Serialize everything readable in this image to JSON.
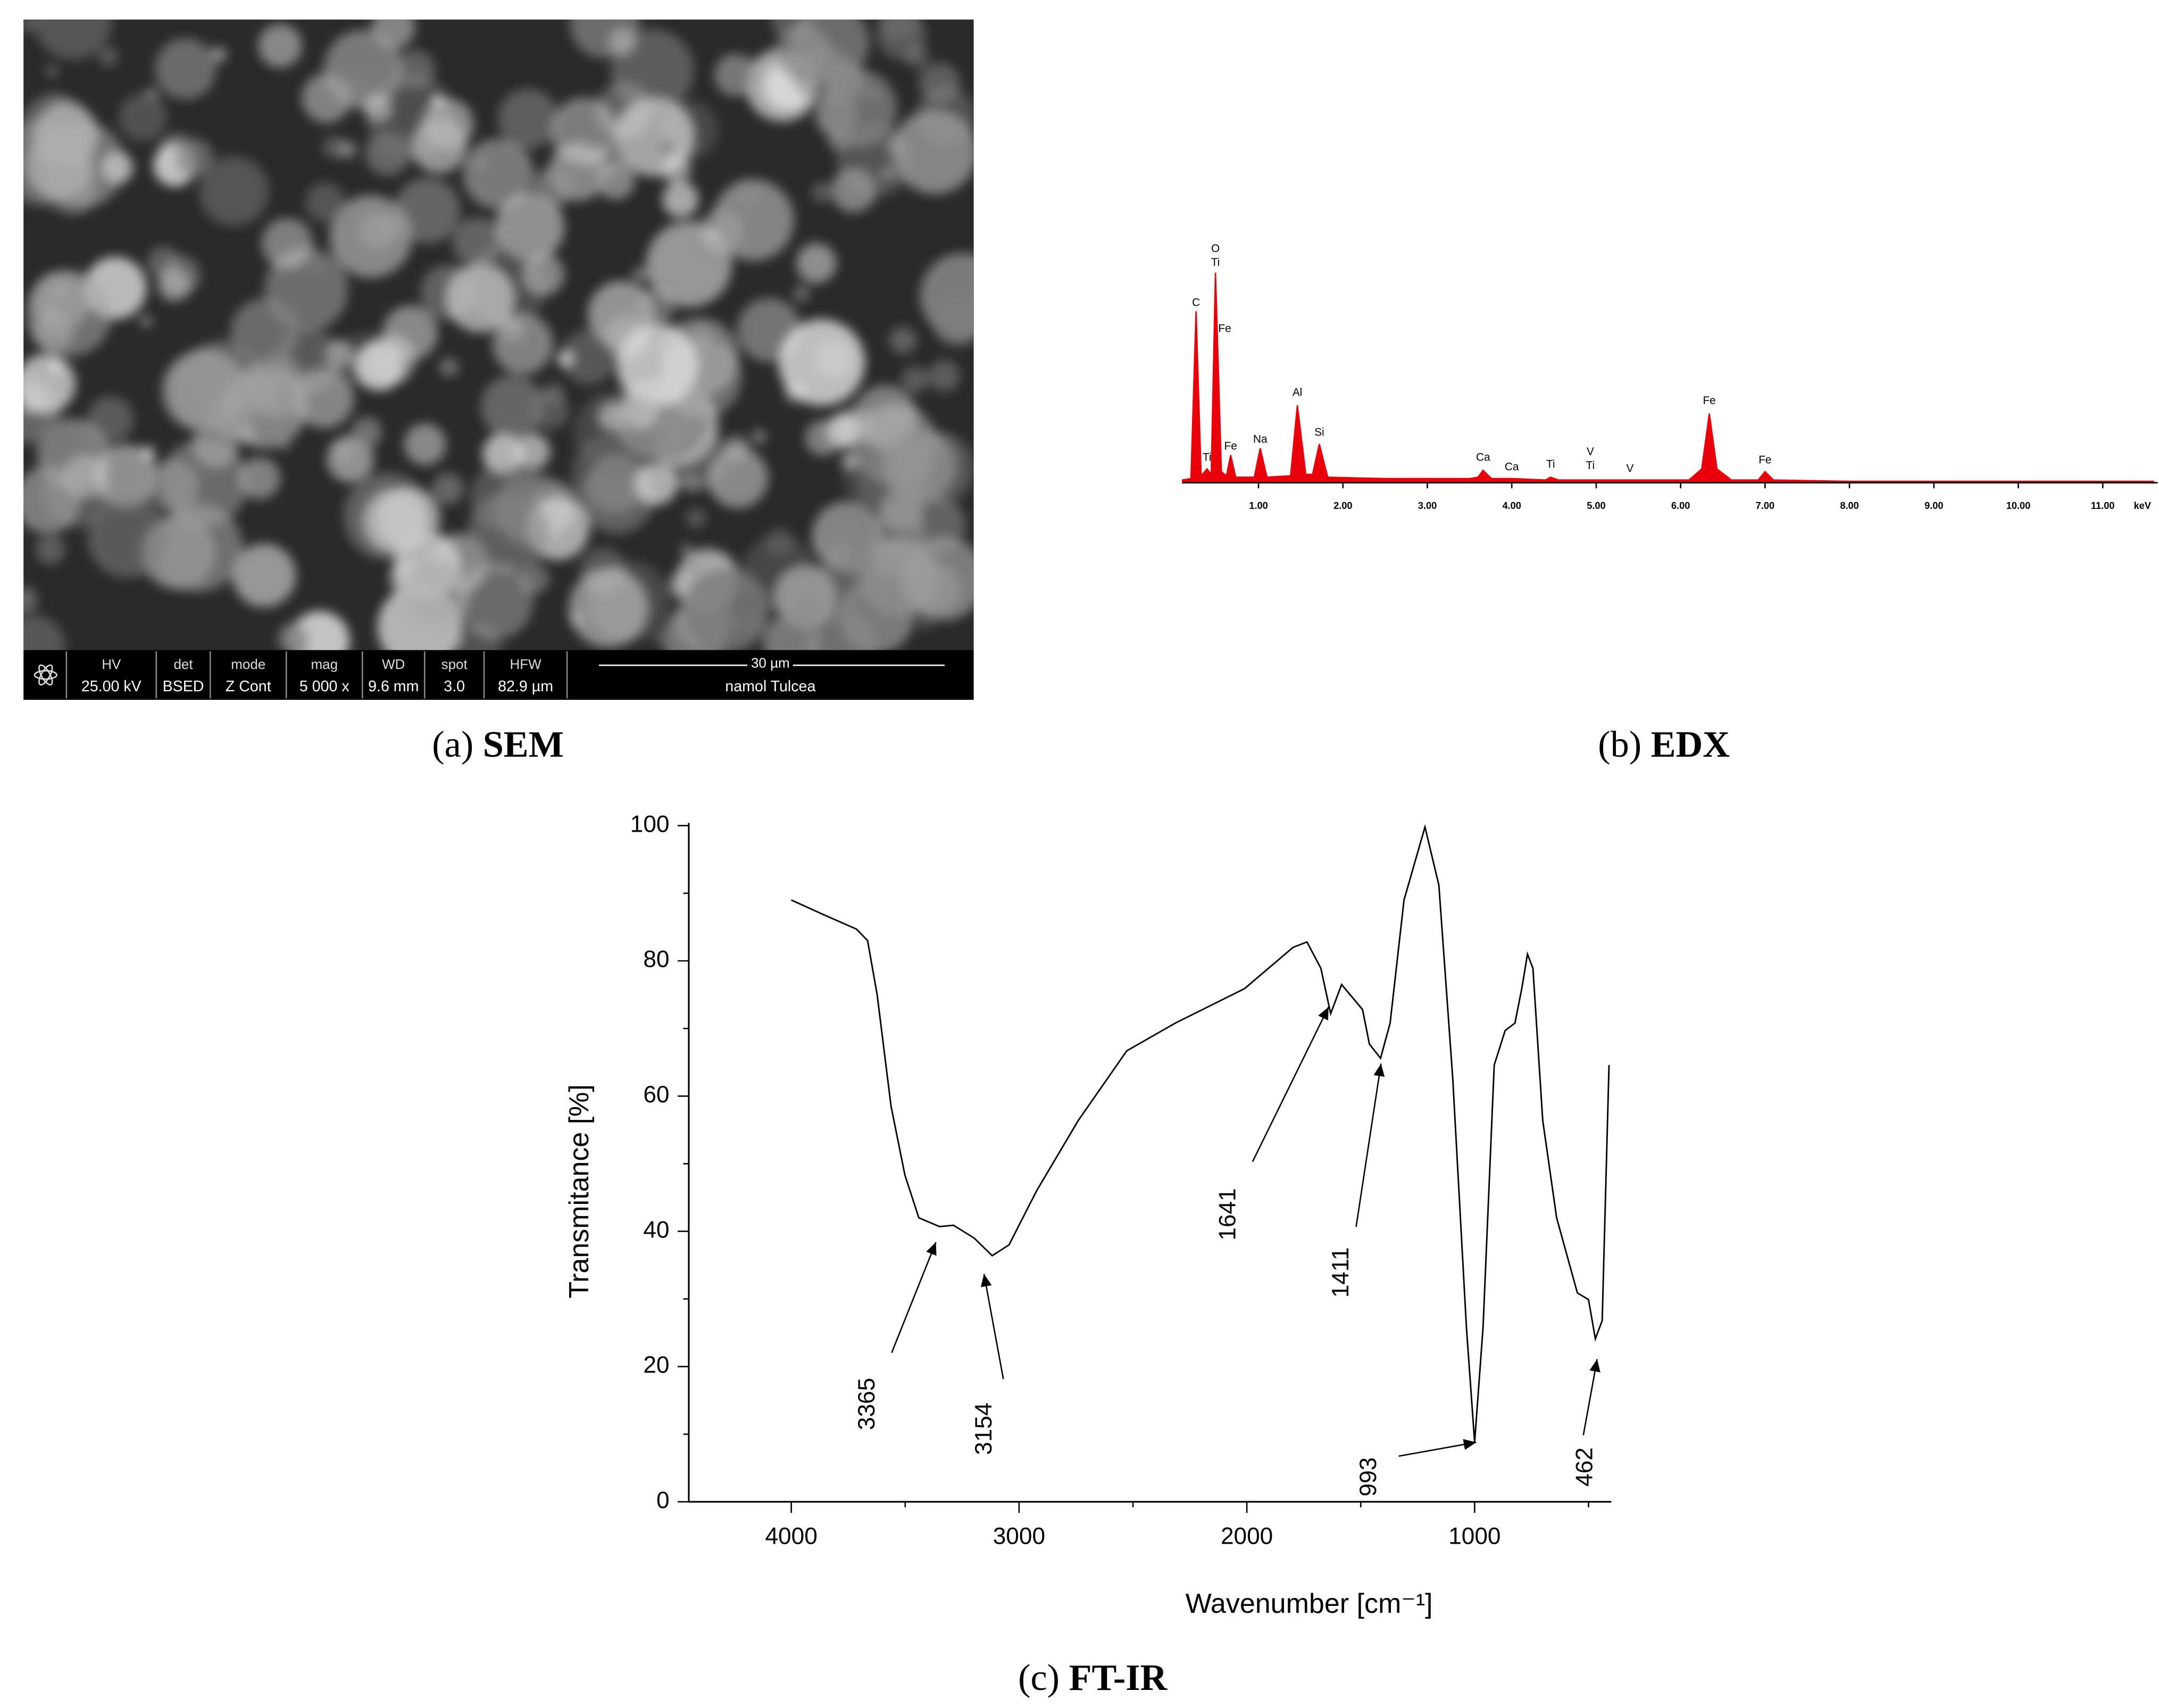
{
  "sem_panel": {
    "caption": {
      "letter": "(a)",
      "name": "SEM"
    },
    "info_bar": [
      {
        "label": "HV",
        "value": "25.00 kV"
      },
      {
        "label": "det",
        "value": "BSED"
      },
      {
        "label": "mode",
        "value": "Z Cont"
      },
      {
        "label": "mag",
        "value": "5 000 x"
      },
      {
        "label": "WD",
        "value": "9.6 mm"
      },
      {
        "label": "spot",
        "value": "3.0"
      },
      {
        "label": "HFW",
        "value": "82.9 µm"
      }
    ],
    "scale_bar": "30 µm",
    "site": "namol Tulcea"
  },
  "chart_data": [
    {
      "type": "area",
      "caption": {
        "letter": "(b)",
        "name": "EDX"
      },
      "x_label": "keV",
      "color": "#e8000b",
      "x": [
        0.1,
        0.2,
        0.26,
        0.32,
        0.39,
        0.44,
        0.49,
        0.56,
        0.62,
        0.67,
        0.73,
        0.95,
        1.02,
        1.1,
        1.38,
        1.46,
        1.56,
        1.64,
        1.72,
        1.82,
        2.5,
        3.5,
        3.6,
        3.66,
        3.76,
        4.0,
        4.4,
        4.46,
        4.55,
        6.1,
        6.25,
        6.34,
        6.43,
        6.6,
        6.92,
        7.0,
        7.1,
        8.0,
        11.6
      ],
      "values": [
        2,
        3,
        124,
        5,
        10,
        6,
        152,
        8,
        5,
        20,
        4,
        4,
        25,
        4,
        5,
        56,
        6,
        6,
        28,
        4,
        3,
        3,
        4,
        9,
        3,
        3,
        2,
        4,
        2,
        2,
        10,
        50,
        10,
        2,
        2,
        8,
        2,
        1,
        1
      ],
      "xlim": [
        0.1,
        11.65
      ],
      "ylim": [
        0,
        170
      ],
      "xticks": [
        {
          "value": 1,
          "label": "1.00"
        },
        {
          "value": 2,
          "label": "2.00"
        },
        {
          "value": 3,
          "label": "3.00"
        },
        {
          "value": 4,
          "label": "4.00"
        },
        {
          "value": 5,
          "label": "5.00"
        },
        {
          "value": 6,
          "label": "6.00"
        },
        {
          "value": 7,
          "label": "7.00"
        },
        {
          "value": 8,
          "label": "8.00"
        },
        {
          "value": 9,
          "label": "9.00"
        },
        {
          "value": 10,
          "label": "10.00"
        },
        {
          "value": 11,
          "label": "11.00"
        }
      ],
      "annotations": [
        {
          "text": "C",
          "x": 0.26,
          "y": 130
        },
        {
          "text": "Ti",
          "x": 0.39,
          "y": 18
        },
        {
          "text": "O",
          "x": 0.49,
          "y": 169
        },
        {
          "text": "Ti",
          "x": 0.49,
          "y": 159
        },
        {
          "text": "Fe",
          "x": 0.6,
          "y": 111
        },
        {
          "text": "Fe",
          "x": 0.67,
          "y": 26
        },
        {
          "text": "Na",
          "x": 1.02,
          "y": 31
        },
        {
          "text": "Al",
          "x": 1.46,
          "y": 65
        },
        {
          "text": "Si",
          "x": 1.72,
          "y": 36
        },
        {
          "text": "Ca",
          "x": 3.66,
          "y": 18
        },
        {
          "text": "Ca",
          "x": 4.0,
          "y": 11
        },
        {
          "text": "Ti",
          "x": 4.46,
          "y": 13
        },
        {
          "text": "V",
          "x": 4.93,
          "y": 22
        },
        {
          "text": "Ti",
          "x": 4.93,
          "y": 12
        },
        {
          "text": "V",
          "x": 5.4,
          "y": 10
        },
        {
          "text": "Fe",
          "x": 6.34,
          "y": 59
        },
        {
          "text": "Fe",
          "x": 7.0,
          "y": 16
        }
      ]
    },
    {
      "type": "line",
      "caption": {
        "letter": "(c)",
        "name": "FT-IR"
      },
      "x_label": "Wavenumber [cm⁻¹]",
      "y_label": "Transmitance [%]",
      "color": "#000000",
      "x": [
        4000,
        3836,
        3714,
        3665,
        3623,
        3562,
        3501,
        3440,
        3349,
        3288,
        3197,
        3118,
        3044,
        2923,
        2740,
        2527,
        2314,
        2010,
        1797,
        1736,
        1675,
        1632,
        1584,
        1492,
        1462,
        1413,
        1371,
        1310,
        1218,
        1157,
        1096,
        1036,
        1000,
        963,
        914,
        866,
        823,
        793,
        768,
        744,
        701,
        640,
        549,
        500,
        470,
        440,
        410
      ],
      "values": [
        89,
        86.5,
        84.7,
        83,
        75,
        58.5,
        48.3,
        42,
        40.7,
        40.9,
        39,
        36.4,
        38,
        46,
        56.4,
        66.7,
        70.8,
        75.9,
        82,
        82.8,
        78.9,
        72.2,
        76.5,
        72.8,
        67.7,
        65.6,
        70.8,
        89,
        99.8,
        91.2,
        62.6,
        25.8,
        8.8,
        25.8,
        64.6,
        69.7,
        70.8,
        75.9,
        81,
        78.9,
        56.4,
        42,
        30.9,
        29.9,
        24.1,
        26.8,
        64.6
      ],
      "xlim": [
        4450,
        400
      ],
      "ylim": [
        0,
        100
      ],
      "xticks": [
        4000,
        3000,
        2000,
        1000
      ],
      "xminorticks": [
        3500,
        2500,
        1500,
        500
      ],
      "yticks": [
        0,
        20,
        40,
        60,
        80,
        100
      ],
      "yminorticks": [
        10,
        30,
        50,
        70,
        90
      ],
      "annotations": [
        {
          "label": 3365,
          "x": 3365,
          "y": 38.4
        },
        {
          "label": 3154,
          "x": 3154,
          "y": 33.7
        },
        {
          "label": 1641,
          "x": 1641,
          "y": 73.2
        },
        {
          "label": 1411,
          "x": 1411,
          "y": 64.8
        },
        {
          "label": 993,
          "x": 993,
          "y": 8.8
        },
        {
          "label": 462,
          "x": 462,
          "y": 21.1
        }
      ]
    }
  ]
}
